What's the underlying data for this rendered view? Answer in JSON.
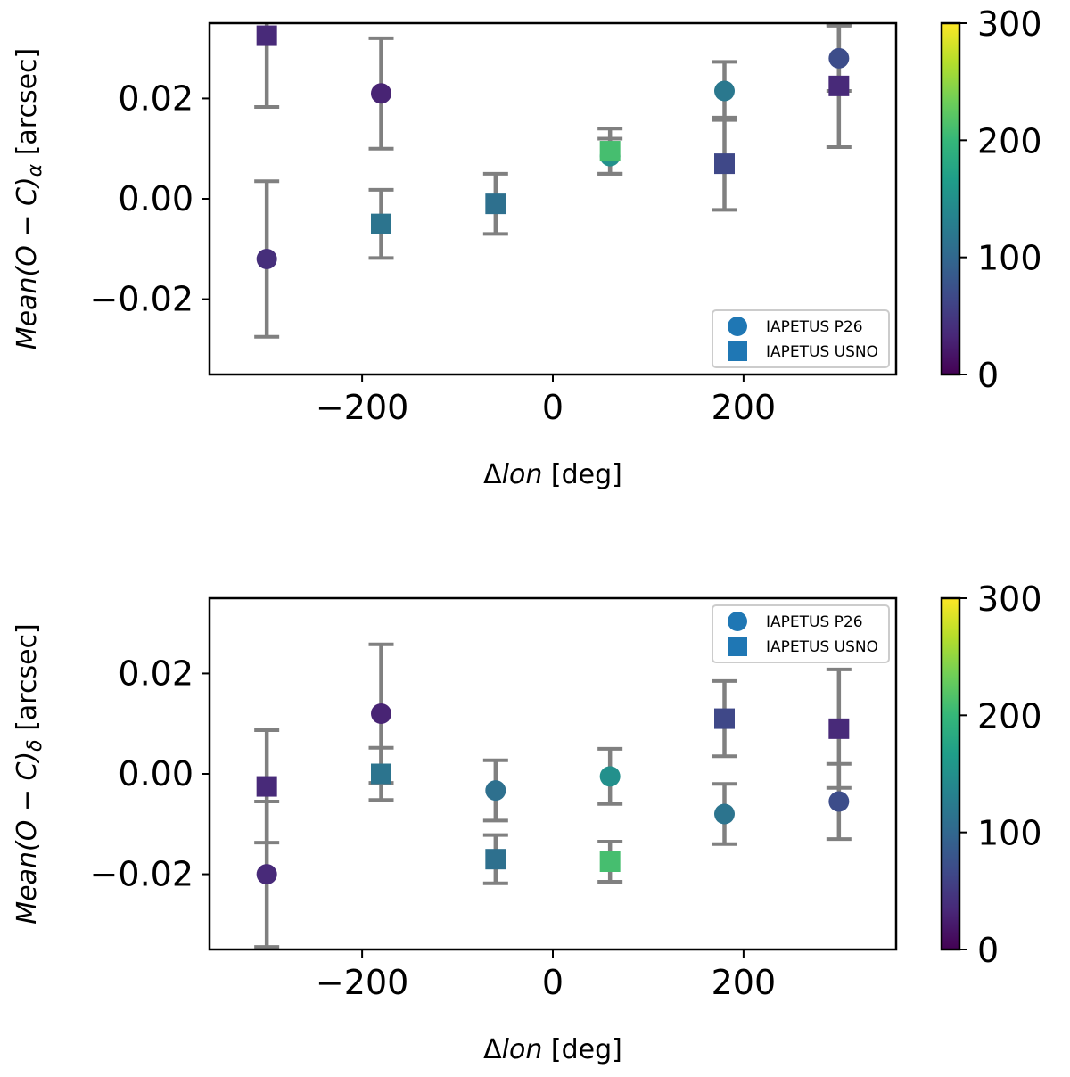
{
  "chart_data": [
    {
      "id": "ra",
      "type": "scatter",
      "xlabel_prefix": "Δ",
      "xlabel_italic": "lon",
      "xlabel_suffix": " [deg]",
      "ylabel_italic": "Mean(O − C)",
      "ylabel_sub": "α",
      "ylabel_suffix": " [arcsec]",
      "xlim": [
        -360,
        360
      ],
      "ylim": [
        -0.035,
        0.035
      ],
      "xticks": [
        -200,
        0,
        200
      ],
      "xtick_labels": [
        "−200",
        "0",
        "200"
      ],
      "yticks": [
        -0.02,
        0.0,
        0.02
      ],
      "ytick_labels": [
        "−0.02",
        "0.00",
        "0.02"
      ],
      "legend_position": "lower-right",
      "legend": [
        "IAPETUS P26",
        "IAPETUS USNO"
      ],
      "colorbar": {
        "min": 0,
        "max": 300,
        "ticks": [
          0,
          100,
          200,
          300
        ],
        "tick_labels": [
          "0",
          "100",
          "200",
          "300"
        ],
        "colormap": "viridis"
      },
      "series": [
        {
          "name": "IAPETUS P26",
          "marker": "circle",
          "points": [
            {
              "x": -300,
              "y": -0.012,
              "err": 0.0155,
              "c": 40
            },
            {
              "x": -180,
              "y": 0.021,
              "err": 0.011,
              "c": 30
            },
            {
              "x": 60,
              "y": 0.0085,
              "err": 0.0035,
              "c": 150
            },
            {
              "x": 180,
              "y": 0.0215,
              "err": 0.0058,
              "c": 120
            },
            {
              "x": 300,
              "y": 0.028,
              "err": 0.0065,
              "c": 70
            }
          ]
        },
        {
          "name": "IAPETUS USNO",
          "marker": "square",
          "points": [
            {
              "x": -300,
              "y": 0.0325,
              "err": 0.0142,
              "c": 35
            },
            {
              "x": -180,
              "y": -0.005,
              "err": 0.0068,
              "c": 115
            },
            {
              "x": -60,
              "y": -0.001,
              "err": 0.006,
              "c": 110
            },
            {
              "x": 60,
              "y": 0.0095,
              "err": 0.0045,
              "c": 210
            },
            {
              "x": 180,
              "y": 0.007,
              "err": 0.0092,
              "c": 65
            },
            {
              "x": 300,
              "y": 0.0225,
              "err": 0.0122,
              "c": 35
            }
          ]
        }
      ]
    },
    {
      "id": "dec",
      "type": "scatter",
      "xlabel_prefix": "Δ",
      "xlabel_italic": "lon",
      "xlabel_suffix": " [deg]",
      "ylabel_italic": "Mean(O − C)",
      "ylabel_sub": "δ",
      "ylabel_suffix": " [arcsec]",
      "xlim": [
        -360,
        360
      ],
      "ylim": [
        -0.035,
        0.035
      ],
      "xticks": [
        -200,
        0,
        200
      ],
      "xtick_labels": [
        "−200",
        "0",
        "200"
      ],
      "yticks": [
        -0.02,
        0.0,
        0.02
      ],
      "ytick_labels": [
        "−0.02",
        "0.00",
        "0.02"
      ],
      "legend_position": "upper-right",
      "legend": [
        "IAPETUS P26",
        "IAPETUS USNO"
      ],
      "colorbar": {
        "min": 0,
        "max": 300,
        "ticks": [
          0,
          100,
          200,
          300
        ],
        "tick_labels": [
          "0",
          "100",
          "200",
          "300"
        ],
        "colormap": "viridis"
      },
      "series": [
        {
          "name": "IAPETUS P26",
          "marker": "circle",
          "points": [
            {
              "x": -300,
              "y": -0.02,
              "err": 0.0145,
              "c": 35
            },
            {
              "x": -180,
              "y": 0.012,
              "err": 0.0138,
              "c": 30
            },
            {
              "x": -60,
              "y": -0.0033,
              "err": 0.006,
              "c": 110
            },
            {
              "x": 60,
              "y": -0.0005,
              "err": 0.0055,
              "c": 150
            },
            {
              "x": 180,
              "y": -0.008,
              "err": 0.006,
              "c": 115
            },
            {
              "x": 300,
              "y": -0.0055,
              "err": 0.0075,
              "c": 70
            }
          ]
        },
        {
          "name": "IAPETUS USNO",
          "marker": "square",
          "points": [
            {
              "x": -300,
              "y": -0.0025,
              "err": 0.0112,
              "c": 35
            },
            {
              "x": -180,
              "y": 0.0,
              "err": 0.0052,
              "c": 115
            },
            {
              "x": -60,
              "y": -0.017,
              "err": 0.0048,
              "c": 110
            },
            {
              "x": 60,
              "y": -0.0175,
              "err": 0.004,
              "c": 210
            },
            {
              "x": 180,
              "y": 0.011,
              "err": 0.0075,
              "c": 65
            },
            {
              "x": 300,
              "y": 0.009,
              "err": 0.0118,
              "c": 35
            }
          ]
        }
      ]
    }
  ],
  "colors": {
    "errorbar": "#808080",
    "legend_marker": "#1f77b4",
    "axis": "#000000"
  }
}
